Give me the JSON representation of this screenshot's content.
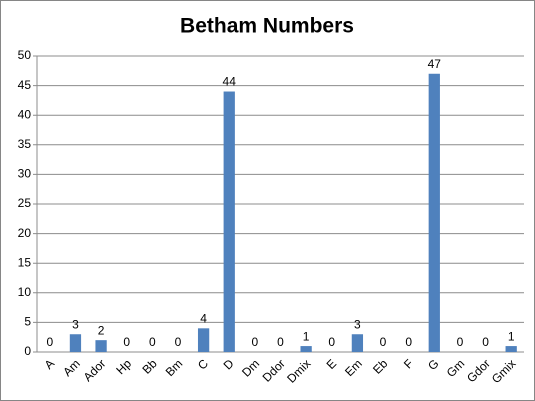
{
  "chart_data": {
    "type": "bar",
    "title": "Betham Numbers",
    "categories": [
      "A",
      "Am",
      "Ador",
      "Hp",
      "Bb",
      "Bm",
      "C",
      "D",
      "Dm",
      "Ddor",
      "Dmix",
      "E",
      "Em",
      "Eb",
      "F",
      "G",
      "Gm",
      "Gdor",
      "Gmix"
    ],
    "values": [
      0,
      3,
      2,
      0,
      0,
      0,
      4,
      44,
      0,
      0,
      1,
      0,
      3,
      0,
      0,
      47,
      0,
      0,
      1
    ],
    "color": "#4f81bd",
    "ylim": [
      0,
      50
    ],
    "yticks": [
      0,
      5,
      10,
      15,
      20,
      25,
      30,
      35,
      40,
      45,
      50
    ],
    "grid": true
  }
}
